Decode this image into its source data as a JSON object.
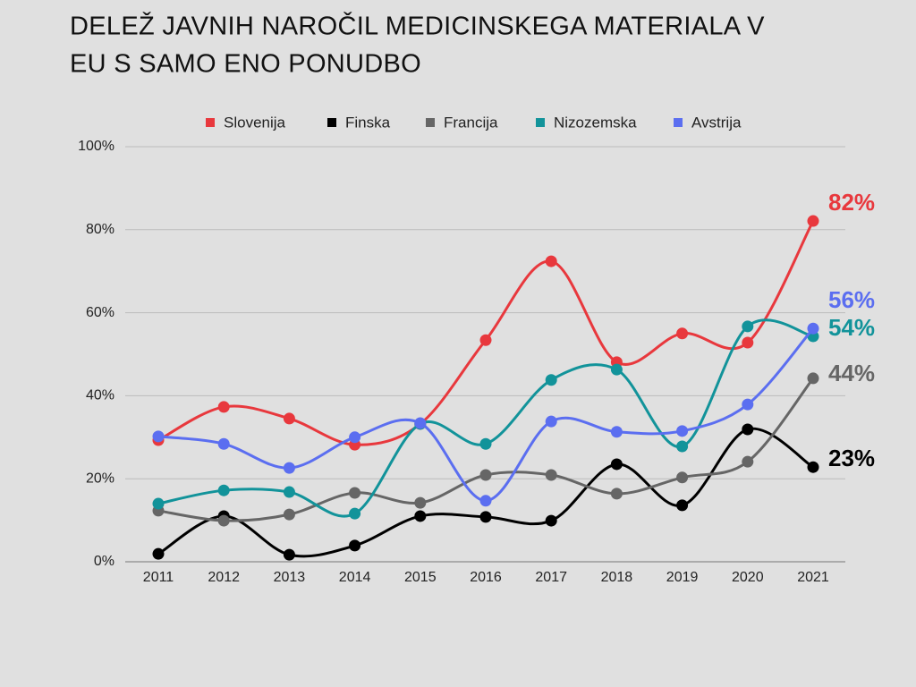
{
  "chart_data": {
    "type": "line",
    "title": [
      "DELEŽ JAVNIH NAROČIL MEDICINSKEGA MATERIALA V",
      "EU S SAMO ENO PONUDBO"
    ],
    "categories": [
      "2011",
      "2012",
      "2013",
      "2014",
      "2015",
      "2016",
      "2017",
      "2018",
      "2019",
      "2020",
      "2021"
    ],
    "ylim": [
      0,
      100
    ],
    "yticks": [
      {
        "value": 0,
        "label": "0%"
      },
      {
        "value": 20,
        "label": "20%"
      },
      {
        "value": 40,
        "label": "40%"
      },
      {
        "value": 60,
        "label": "60%"
      },
      {
        "value": 80,
        "label": "80%"
      },
      {
        "value": 100,
        "label": "100%"
      }
    ],
    "grid": true,
    "legend": "top",
    "smooth": true,
    "series": [
      {
        "name": "Slovenija",
        "color": "#e8383d",
        "values": [
          29.3,
          37.3,
          34.5,
          28.2,
          33.2,
          53.4,
          72.4,
          48.1,
          55.0,
          52.8,
          82.1
        ],
        "value_labels": [
          null,
          null,
          null,
          null,
          null,
          null,
          null,
          null,
          null,
          null,
          "82%"
        ]
      },
      {
        "name": "Finska",
        "color": "#000000",
        "values": [
          1.9,
          11.0,
          1.7,
          3.9,
          11.0,
          10.8,
          9.9,
          23.5,
          13.6,
          31.9,
          22.8
        ],
        "value_labels": [
          null,
          null,
          null,
          null,
          null,
          null,
          null,
          null,
          null,
          null,
          "23%"
        ]
      },
      {
        "name": "Francija",
        "color": "#666666",
        "values": [
          12.3,
          9.9,
          11.4,
          16.6,
          14.2,
          20.9,
          20.9,
          16.4,
          20.3,
          24.1,
          44.2
        ],
        "value_labels": [
          null,
          null,
          null,
          null,
          null,
          null,
          null,
          null,
          null,
          null,
          "44%"
        ]
      },
      {
        "name": "Nizozemska",
        "color": "#12939a",
        "values": [
          14.0,
          17.2,
          16.8,
          11.6,
          33.2,
          28.4,
          43.8,
          46.3,
          27.8,
          56.7,
          54.3
        ],
        "value_labels": [
          null,
          null,
          null,
          null,
          null,
          null,
          null,
          null,
          null,
          null,
          "54%"
        ]
      },
      {
        "name": "Avstrija",
        "color": "#5b6ef0",
        "values": [
          30.2,
          28.4,
          22.6,
          30.0,
          33.4,
          14.7,
          33.8,
          31.3,
          31.5,
          37.9,
          56.2
        ],
        "value_labels": [
          null,
          null,
          null,
          null,
          null,
          null,
          null,
          null,
          null,
          null,
          "56%"
        ]
      }
    ]
  }
}
